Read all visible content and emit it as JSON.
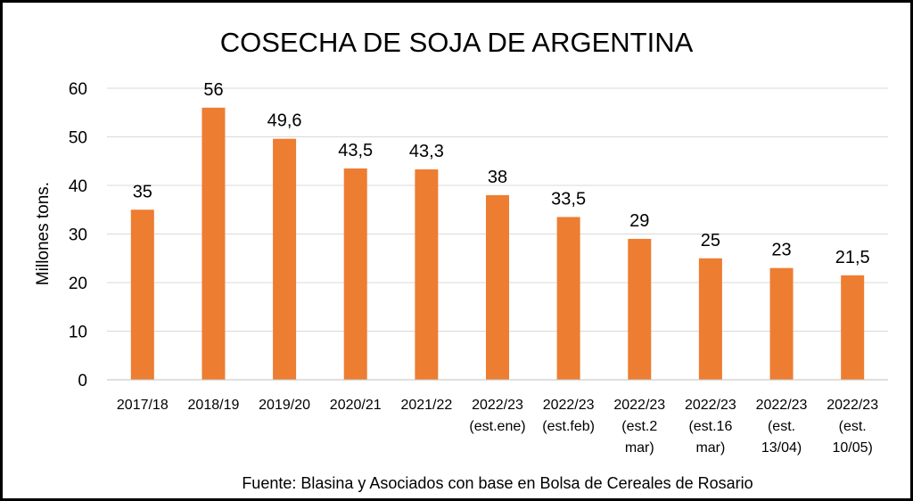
{
  "chart_data": {
    "type": "bar",
    "title": "COSECHA DE SOJA DE ARGENTINA",
    "ylabel": "Millones tons.",
    "xlabel": "",
    "ylim": [
      0,
      60
    ],
    "yticks": [
      0,
      10,
      20,
      30,
      40,
      50,
      60
    ],
    "grid": true,
    "bar_color": "#ED7D31",
    "categories": [
      [
        "2017/18"
      ],
      [
        "2018/19"
      ],
      [
        "2019/20"
      ],
      [
        "2020/21"
      ],
      [
        "2021/22"
      ],
      [
        "2022/23",
        "(est.ene)"
      ],
      [
        "2022/23",
        "(est.feb)"
      ],
      [
        "2022/23",
        "(est.2",
        "mar)"
      ],
      [
        "2022/23",
        "(est.16",
        "mar)"
      ],
      [
        "2022/23",
        "(est.",
        "13/04)"
      ],
      [
        "2022/23",
        "(est.",
        "10/05)"
      ]
    ],
    "values": [
      35,
      56,
      49.6,
      43.5,
      43.3,
      38,
      33.5,
      29,
      25,
      23,
      21.5
    ],
    "data_labels": [
      "35",
      "56",
      "49,6",
      "43,5",
      "43,3",
      "38",
      "33,5",
      "29",
      "25",
      "23",
      "21,5"
    ],
    "source": "Fuente: Blasina y Asociados con base en Bolsa de Cereales de Rosario"
  }
}
